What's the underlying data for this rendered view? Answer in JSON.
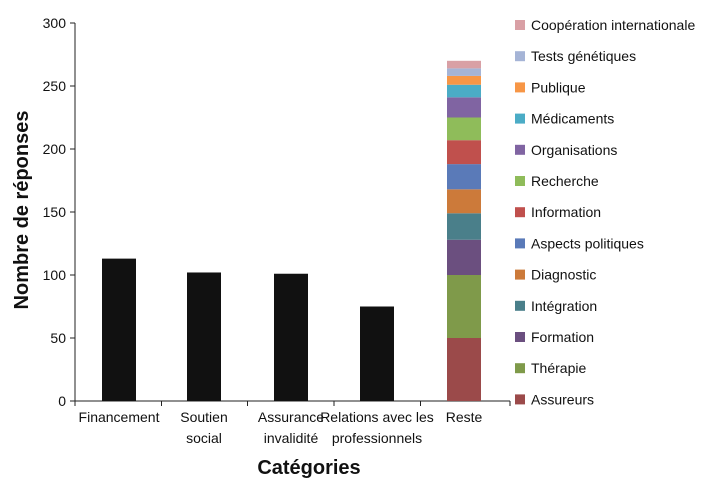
{
  "chart_data": {
    "type": "bar",
    "title": "",
    "xlabel": "Catégories",
    "ylabel": "Nombre de réponses",
    "ylim": [
      0,
      300
    ],
    "yticks": [
      0,
      50,
      100,
      150,
      200,
      250,
      300
    ],
    "grid": false,
    "legend_position": "right",
    "categories": [
      [
        "Financement"
      ],
      [
        "Soutien",
        "social"
      ],
      [
        "Assurance",
        "invalidité"
      ],
      [
        "Relations avec les",
        "professionnels"
      ],
      [
        "Reste"
      ]
    ],
    "main_series": {
      "color": "#111111",
      "values": [
        113,
        102,
        101,
        75,
        null
      ]
    },
    "stacked_series": [
      {
        "name": "Assureurs",
        "value": 50,
        "color": "#9B4A4A"
      },
      {
        "name": "Thérapie",
        "value": 50,
        "color": "#7F9A4A"
      },
      {
        "name": "Formation",
        "value": 28,
        "color": "#6B4F7F"
      },
      {
        "name": "Intégration",
        "value": 21,
        "color": "#4A7F8A"
      },
      {
        "name": "Diagnostic",
        "value": 19,
        "color": "#CC7A3A"
      },
      {
        "name": "Aspects politiques",
        "value": 20,
        "color": "#5A7AB8"
      },
      {
        "name": "Information",
        "value": 19,
        "color": "#C0504D"
      },
      {
        "name": "Recherche",
        "value": 18,
        "color": "#8FBC5A"
      },
      {
        "name": "Organisations",
        "value": 16,
        "color": "#8064A2"
      },
      {
        "name": "Médicaments",
        "value": 10,
        "color": "#4BACC6"
      },
      {
        "name": "Publique",
        "value": 7,
        "color": "#F79646"
      },
      {
        "name": "Tests génétiques",
        "value": 6,
        "color": "#A5B4D6"
      },
      {
        "name": "Coopération internationale",
        "value": 6,
        "color": "#D9A0A5"
      }
    ]
  }
}
